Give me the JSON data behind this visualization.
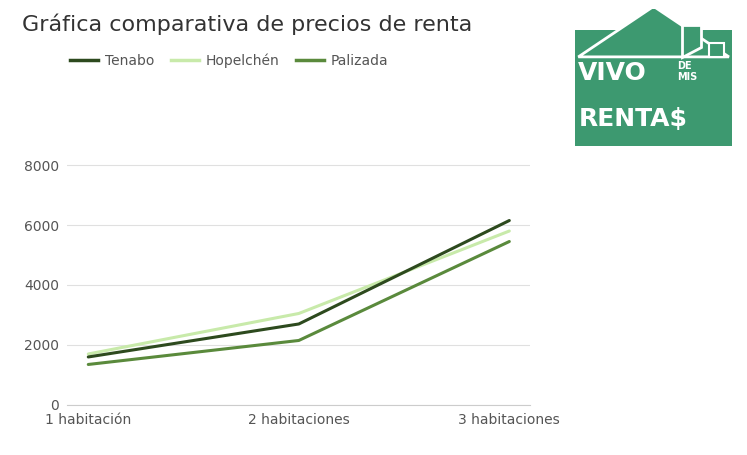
{
  "title": "Gráfica comparativa de precios de renta",
  "categories": [
    "1 habitación",
    "2 habitaciones",
    "3 habitaciones"
  ],
  "series": [
    {
      "name": "Tenabo",
      "values": [
        1600,
        2700,
        6150
      ],
      "color": "#2d4a1e",
      "linewidth": 2.2,
      "zorder": 4
    },
    {
      "name": "Hopelchén",
      "values": [
        1700,
        3050,
        5800
      ],
      "color": "#c8eaaa",
      "linewidth": 2.2,
      "zorder": 3
    },
    {
      "name": "Palizada",
      "values": [
        1350,
        2150,
        5450
      ],
      "color": "#5a8a3c",
      "linewidth": 2.2,
      "zorder": 2
    }
  ],
  "ylim": [
    0,
    8800
  ],
  "yticks": [
    0,
    2000,
    4000,
    6000,
    8000
  ],
  "background_color": "#ffffff",
  "grid_color": "#e0e0e0",
  "title_fontsize": 16,
  "tick_fontsize": 10,
  "legend_fontsize": 10,
  "title_color": "#333333",
  "tick_color": "#555555",
  "logo_bg_color": "#3d9970"
}
